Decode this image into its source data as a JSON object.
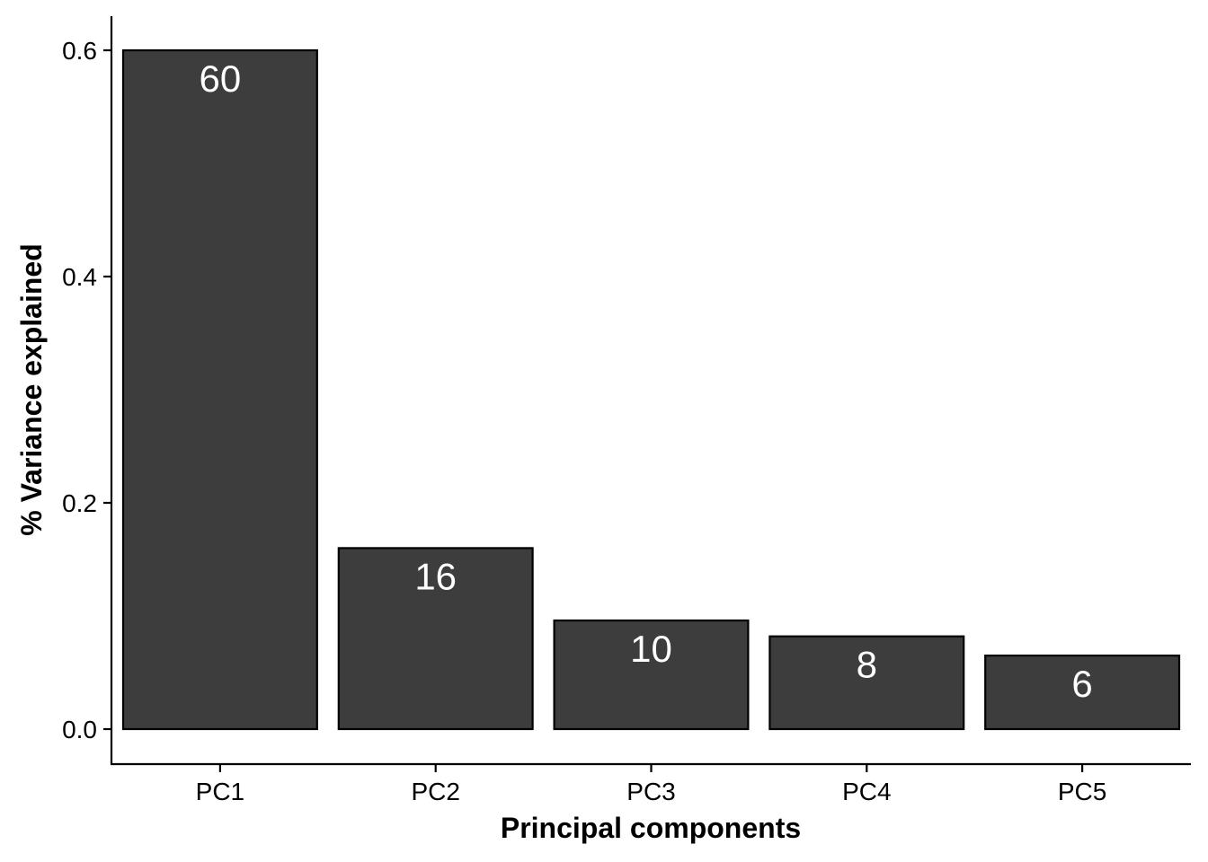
{
  "chart_data": {
    "type": "bar",
    "categories": [
      "PC1",
      "PC2",
      "PC3",
      "PC4",
      "PC5"
    ],
    "values": [
      0.6,
      0.16,
      0.096,
      0.082,
      0.065
    ],
    "bar_labels": [
      "60",
      "16",
      "10",
      "8",
      "6"
    ],
    "xlabel": "Principal components",
    "ylabel": "% Variance explained",
    "ylim": [
      -0.03,
      0.63
    ],
    "yticks": [
      0.0,
      0.2,
      0.4,
      0.6
    ],
    "ytick_labels": [
      "0.0",
      "0.2",
      "0.4",
      "0.6"
    ],
    "grid": false,
    "bar_color": "#3d3d3d",
    "bar_edge_color": "#000000",
    "label_color": "#ffffff"
  }
}
